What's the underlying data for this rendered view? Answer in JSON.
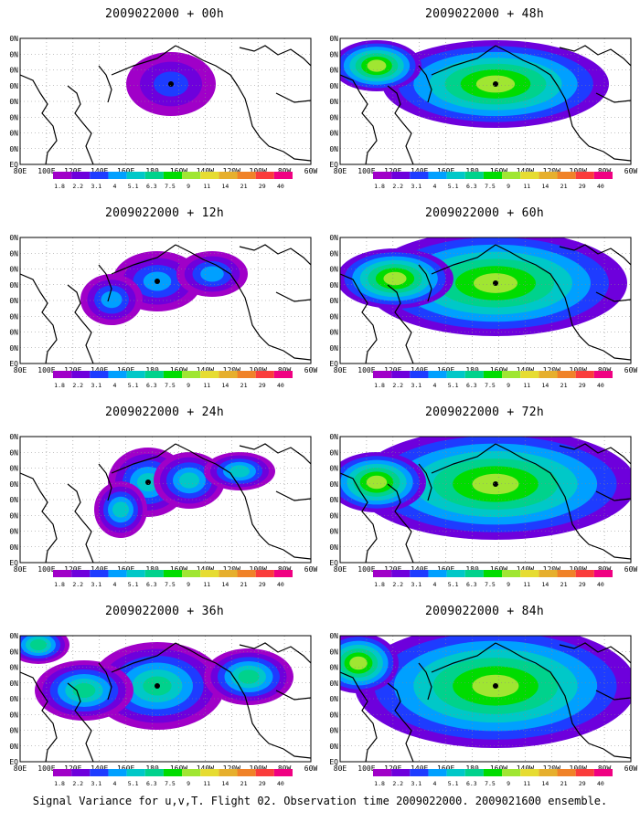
{
  "panels": [
    {
      "title": "2009022000 + 00h",
      "level": 0
    },
    {
      "title": "2009022000 + 48h",
      "level": 4
    },
    {
      "title": "2009022000 + 12h",
      "level": 1
    },
    {
      "title": "2009022000 + 60h",
      "level": 5
    },
    {
      "title": "2009022000 + 24h",
      "level": 2
    },
    {
      "title": "2009022000 + 72h",
      "level": 6
    },
    {
      "title": "2009022000 + 36h",
      "level": 3
    },
    {
      "title": "2009022000 + 84h",
      "level": 7
    }
  ],
  "lon_labels": [
    "80E",
    "100E",
    "120E",
    "140E",
    "160E",
    "180",
    "160W",
    "140W",
    "120W",
    "100W",
    "80W",
    "60W"
  ],
  "lat_labels": [
    "80N",
    "70N",
    "60N",
    "50N",
    "40N",
    "30N",
    "20N",
    "10N",
    "EQ"
  ],
  "colorbar": {
    "labels": [
      "1.8",
      "2.2",
      "3.1",
      "4",
      "5.1",
      "6.3",
      "7.5",
      "9",
      "11",
      "14",
      "21",
      "29",
      "40"
    ],
    "colors": [
      "#a000c8",
      "#6e00dc",
      "#1e3cff",
      "#00a0ff",
      "#00c8c8",
      "#00d28c",
      "#00dc00",
      "#a0e632",
      "#e6dc32",
      "#e6af2d",
      "#f08228",
      "#fa3c3c",
      "#f00082"
    ]
  },
  "caption": "Signal Variance for u,v,T. Flight 02. Observation time 2009022000. 2009021600 ensemble."
}
